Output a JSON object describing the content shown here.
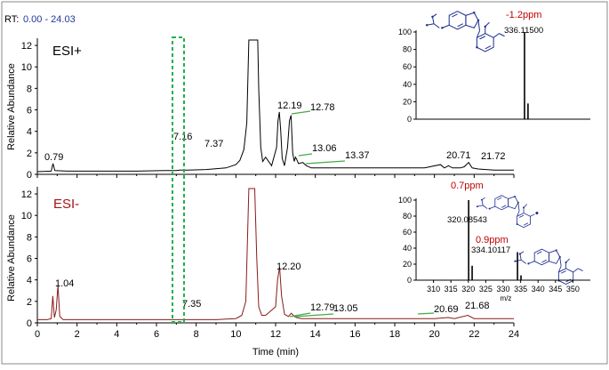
{
  "header": {
    "rt_label": "RT:",
    "rt_range": "0.00 - 24.03"
  },
  "colors": {
    "esi_pos_trace": "#000000",
    "esi_neg_trace": "#8b1a1a",
    "esi_neg_label": "#a31515",
    "ppm_label": "#c00000",
    "structure": "#1f2f8f",
    "highlight_box": "#22b14c",
    "tag_line": "#44aa44",
    "rt_value": "#1f3a9a"
  },
  "chart_data": [
    {
      "type": "line",
      "panel": "top",
      "title": "ESI+",
      "xlabel": "",
      "ylabel": "Relative Abundance",
      "xlim": [
        0,
        24
      ],
      "ylim": [
        0,
        12.5
      ],
      "yticks": [
        "0",
        "2",
        "4",
        "6",
        "8",
        "10",
        "12"
      ],
      "grid": false,
      "series": [
        {
          "x": [
            0.0,
            0.7,
            0.79,
            0.88,
            1.5,
            3.0,
            5.0,
            6.4,
            6.8,
            7.0,
            7.16,
            7.3,
            7.37,
            7.6,
            8.5,
            9.5,
            10.0,
            10.2,
            10.4,
            10.55,
            10.65,
            10.75,
            10.8,
            10.85,
            10.9,
            10.95,
            11.0,
            11.05,
            11.1,
            11.15,
            11.25,
            11.35,
            11.5,
            11.8,
            12.05,
            12.12,
            12.19,
            12.26,
            12.33,
            12.45,
            12.6,
            12.7,
            12.78,
            12.86,
            12.94,
            13.0,
            13.06,
            13.15,
            13.37,
            13.55,
            13.8,
            14.5,
            16.0,
            18.0,
            19.5,
            20.3,
            20.5,
            20.71,
            20.9,
            21.1,
            21.3,
            21.5,
            21.72,
            21.9,
            22.2,
            23.0,
            24.0
          ],
          "y": [
            0.25,
            0.3,
            1.0,
            0.35,
            0.3,
            0.3,
            0.3,
            0.35,
            0.35,
            0.35,
            0.4,
            0.4,
            0.4,
            0.4,
            0.45,
            0.6,
            0.9,
            1.3,
            2.3,
            4.8,
            12.5,
            12.5,
            12.5,
            12.5,
            12.5,
            12.5,
            12.5,
            12.5,
            12.5,
            8.0,
            2.5,
            1.2,
            1.6,
            0.8,
            2.5,
            5.0,
            5.8,
            4.0,
            1.5,
            0.8,
            2.5,
            5.0,
            5.5,
            2.0,
            1.2,
            1.6,
            1.4,
            1.0,
            1.1,
            0.8,
            0.6,
            0.6,
            0.6,
            0.6,
            0.6,
            0.9,
            0.6,
            0.8,
            0.6,
            0.6,
            0.6,
            0.7,
            1.1,
            0.6,
            0.5,
            0.4,
            0.4
          ]
        }
      ],
      "annotations": [
        {
          "label": "0.79",
          "x": 0.79
        },
        {
          "label": "7.16",
          "x": 7.16
        },
        {
          "label": "7.37",
          "x": 7.37
        },
        {
          "label": "12.19",
          "x": 12.19
        },
        {
          "label": "12.78",
          "x": 12.78
        },
        {
          "label": "13.06",
          "x": 13.06
        },
        {
          "label": "13.37",
          "x": 13.37
        },
        {
          "label": "20.71",
          "x": 20.71
        },
        {
          "label": "21.72",
          "x": 21.72
        }
      ]
    },
    {
      "type": "line",
      "panel": "bottom",
      "title": "ESI-",
      "xlabel": "Time (min)",
      "ylabel": "Relative Abundance",
      "xlim": [
        0,
        24
      ],
      "ylim": [
        0,
        12.5
      ],
      "xticks": [
        "0",
        "2",
        "4",
        "6",
        "8",
        "10",
        "12",
        "14",
        "16",
        "18",
        "20",
        "22",
        "24"
      ],
      "yticks": [
        "0",
        "2",
        "4",
        "6",
        "8",
        "10",
        "12"
      ],
      "grid": false,
      "series": [
        {
          "x": [
            0.0,
            0.5,
            0.7,
            0.78,
            0.86,
            0.95,
            1.04,
            1.13,
            1.3,
            2.0,
            4.0,
            6.0,
            7.0,
            7.35,
            8.0,
            9.0,
            10.0,
            10.3,
            10.5,
            10.65,
            10.75,
            10.85,
            10.95,
            11.05,
            11.15,
            11.3,
            11.5,
            12.0,
            12.1,
            12.2,
            12.3,
            12.45,
            12.65,
            12.79,
            12.95,
            13.05,
            13.3,
            15.0,
            18.0,
            20.0,
            20.69,
            21.0,
            21.68,
            22.0,
            23.0,
            24.0
          ],
          "y": [
            0.3,
            0.3,
            0.4,
            2.5,
            0.5,
            1.2,
            3.5,
            0.6,
            0.3,
            0.3,
            0.3,
            0.3,
            0.3,
            0.3,
            0.3,
            0.3,
            0.4,
            0.7,
            2.0,
            12.5,
            12.5,
            12.5,
            12.5,
            6.0,
            1.5,
            0.7,
            0.7,
            1.5,
            4.0,
            5.2,
            2.5,
            0.8,
            0.6,
            0.9,
            0.6,
            0.5,
            0.4,
            0.4,
            0.4,
            0.4,
            0.5,
            0.4,
            0.7,
            0.4,
            0.4,
            0.4
          ]
        }
      ],
      "annotations": [
        {
          "label": "1.04",
          "x": 1.04
        },
        {
          "label": "7.35",
          "x": 7.35
        },
        {
          "label": "12.20",
          "x": 12.2
        },
        {
          "label": "12.79",
          "x": 12.79
        },
        {
          "label": "13.05",
          "x": 13.05
        },
        {
          "label": "20.69",
          "x": 20.69
        },
        {
          "label": "21.68",
          "x": 21.68
        }
      ]
    },
    {
      "type": "bar",
      "panel": "top-inset",
      "xlim": [
        305,
        355
      ],
      "ylim": [
        0,
        100
      ],
      "yticks": [
        "0",
        "20",
        "40",
        "60",
        "80",
        "100"
      ],
      "peaks": [
        {
          "mz": 336.115,
          "intensity": 100,
          "label": "336.11500",
          "ppm": "-1.2ppm"
        },
        {
          "mz": 337.118,
          "intensity": 18
        }
      ]
    },
    {
      "type": "bar",
      "panel": "bottom-inset",
      "xlabel": "m/z",
      "xlim": [
        305,
        355
      ],
      "ylim": [
        0,
        100
      ],
      "xticks": [
        "310",
        "315",
        "320",
        "325",
        "330",
        "335",
        "340",
        "345",
        "350"
      ],
      "yticks": [
        "0",
        "20",
        "40",
        "60",
        "80",
        "100"
      ],
      "peaks": [
        {
          "mz": 320.085,
          "intensity": 100,
          "label": "320.08543",
          "ppm": "0.7ppm"
        },
        {
          "mz": 321.088,
          "intensity": 18
        },
        {
          "mz": 334.101,
          "intensity": 35,
          "label": "334.10117",
          "ppm": "0.9ppm"
        },
        {
          "mz": 335.104,
          "intensity": 6
        }
      ]
    }
  ]
}
